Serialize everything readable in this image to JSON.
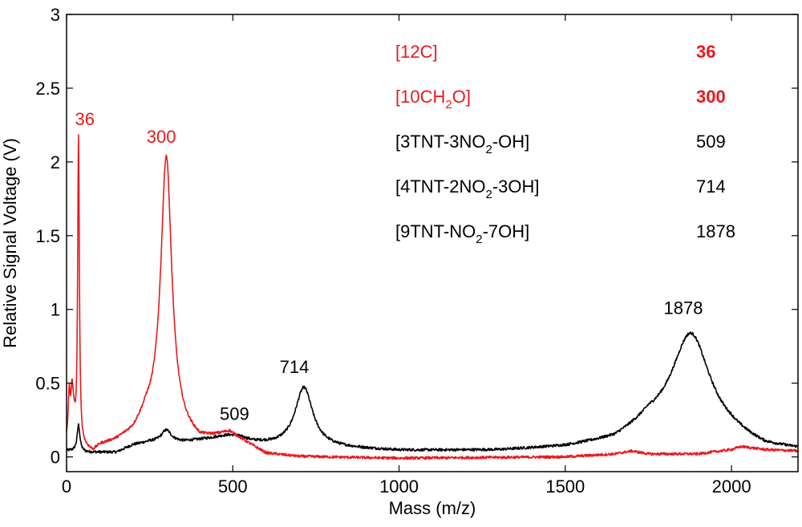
{
  "chart_data": {
    "type": "line",
    "title": "",
    "xlabel": "Mass (m/z)",
    "ylabel": "Relative Signal Voltage (V)",
    "xlim": [
      0,
      2200
    ],
    "ylim": [
      -0.1,
      3
    ],
    "x_ticks": [
      0,
      500,
      1000,
      1500,
      2000
    ],
    "y_ticks": [
      0,
      0.5,
      1,
      1.5,
      2,
      2.5,
      3
    ],
    "x_tick_labels": [
      "0",
      "500",
      "1000",
      "1500",
      "2000"
    ],
    "y_tick_labels": [
      "0",
      "0.5",
      "1",
      "1.5",
      "2",
      "2.5",
      "3"
    ],
    "grid": false,
    "series": [
      {
        "name": "red",
        "color": "#e8191c",
        "baseline": [
          [
            0,
            0.12
          ],
          [
            10,
            0.2
          ],
          [
            20,
            0.3
          ],
          [
            30,
            0.08
          ],
          [
            60,
            0.05
          ],
          [
            80,
            0.03
          ],
          [
            100,
            0.07
          ],
          [
            150,
            0.1
          ],
          [
            200,
            0.15
          ],
          [
            240,
            0.25
          ],
          [
            400,
            0.1
          ],
          [
            450,
            0.13
          ],
          [
            490,
            0.16
          ],
          [
            520,
            0.12
          ],
          [
            600,
            0.02
          ],
          [
            700,
            0.0
          ],
          [
            1000,
            -0.01
          ],
          [
            1500,
            0.0
          ],
          [
            1650,
            0.02
          ],
          [
            1700,
            0.04
          ],
          [
            1750,
            0.02
          ],
          [
            1900,
            0.02
          ],
          [
            2000,
            0.05
          ],
          [
            2030,
            0.07
          ],
          [
            2100,
            0.05
          ],
          [
            2200,
            0.04
          ]
        ],
        "peaks": [
          {
            "center": 36,
            "height": 2.1,
            "width": 3
          },
          {
            "center": 300,
            "height": 1.85,
            "width": 20
          },
          {
            "center": 8,
            "height": 0.25,
            "width": 3
          },
          {
            "center": 16,
            "height": 0.18,
            "width": 3
          }
        ]
      },
      {
        "name": "black",
        "color": "#000000",
        "baseline": [
          [
            0,
            0.04
          ],
          [
            20,
            0.04
          ],
          [
            60,
            0.03
          ],
          [
            150,
            0.03
          ],
          [
            200,
            0.08
          ],
          [
            250,
            0.1
          ],
          [
            350,
            0.1
          ],
          [
            420,
            0.12
          ],
          [
            480,
            0.14
          ],
          [
            509,
            0.14
          ],
          [
            560,
            0.1
          ],
          [
            620,
            0.08
          ],
          [
            800,
            0.06
          ],
          [
            1000,
            0.04
          ],
          [
            1300,
            0.04
          ],
          [
            1500,
            0.06
          ],
          [
            1650,
            0.1
          ],
          [
            1750,
            0.2
          ],
          [
            2000,
            0.12
          ],
          [
            2100,
            0.05
          ],
          [
            2200,
            0.04
          ]
        ],
        "peaks": [
          {
            "center": 36,
            "height": 0.18,
            "width": 5
          },
          {
            "center": 300,
            "height": 0.08,
            "width": 18
          },
          {
            "center": 714,
            "height": 0.4,
            "width": 32
          },
          {
            "center": 1878,
            "height": 0.68,
            "width": 70
          }
        ]
      }
    ],
    "annotations": [
      {
        "text": "36",
        "x": 55,
        "y": 2.25,
        "color": "#e8191c"
      },
      {
        "text": "300",
        "x": 285,
        "y": 2.13,
        "color": "#e8191c"
      },
      {
        "text": "509",
        "x": 505,
        "y": 0.25,
        "color": "#000000"
      },
      {
        "text": "714",
        "x": 685,
        "y": 0.57,
        "color": "#000000"
      },
      {
        "text": "1878",
        "x": 1855,
        "y": 0.97,
        "color": "#000000"
      }
    ],
    "legend": [
      {
        "label_parts": [
          {
            "t": "[12C]"
          }
        ],
        "value": "36",
        "color": "#e8191c",
        "bold_value": true
      },
      {
        "label_parts": [
          {
            "t": "[10CH"
          },
          {
            "t": "2",
            "sub": true
          },
          {
            "t": "O]"
          }
        ],
        "value": "300",
        "color": "#e8191c",
        "bold_value": true
      },
      {
        "label_parts": [
          {
            "t": "[3TNT-3NO"
          },
          {
            "t": "2",
            "sub": true
          },
          {
            "t": "-OH]"
          }
        ],
        "value": "509",
        "color": "#000000",
        "bold_value": false
      },
      {
        "label_parts": [
          {
            "t": "[4TNT-2NO"
          },
          {
            "t": "2",
            "sub": true
          },
          {
            "t": "-3OH]"
          }
        ],
        "value": "714",
        "color": "#000000",
        "bold_value": false
      },
      {
        "label_parts": [
          {
            "t": "[9TNT-NO"
          },
          {
            "t": "2",
            "sub": true
          },
          {
            "t": "-7OH]"
          }
        ],
        "value": "1878",
        "color": "#000000",
        "bold_value": false
      }
    ],
    "legend_position": "top-right"
  }
}
